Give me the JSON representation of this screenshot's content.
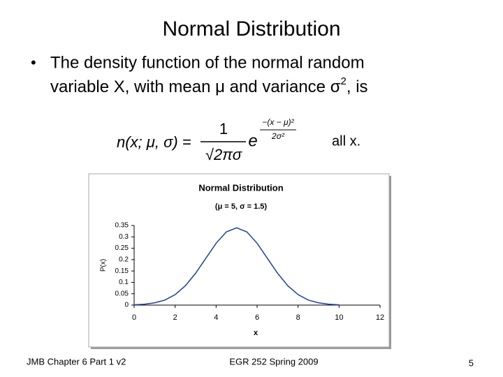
{
  "slide": {
    "title": "Normal Distribution",
    "bullet": {
      "line1": "The density function of the normal random",
      "line2_start": "variable X, with mean μ and variance σ",
      "superscript": "2",
      "line2_end": ", is"
    },
    "formula": {
      "lhs": "n(x; μ, σ) =",
      "numerator": "1",
      "denominator": "√2πσ",
      "base": "e",
      "exp_numerator": "−(x − μ)²",
      "exp_denominator": "2σ²",
      "condition": "all x."
    },
    "footer": {
      "left": "JMB Chapter 6 Part 1 v2",
      "center": "EGR 252 Spring 2009",
      "page": "5"
    }
  },
  "chart_data": {
    "type": "line",
    "title": "Normal Distribution",
    "subtitle": "(μ = 5, σ = 1.5)",
    "x_label": "x",
    "y_label": "P(x)",
    "x": [
      0,
      0.5,
      1,
      1.5,
      2,
      2.5,
      3,
      3.5,
      4,
      4.5,
      5,
      5.5,
      6,
      6.5,
      7,
      7.5,
      8,
      8.5,
      9,
      9.5,
      10
    ],
    "series": [
      {
        "name": "P(x)",
        "color": "#1f3f99",
        "values": [
          0.001,
          0.004,
          0.01,
          0.022,
          0.046,
          0.085,
          0.14,
          0.206,
          0.272,
          0.322,
          0.34,
          0.322,
          0.272,
          0.206,
          0.14,
          0.085,
          0.046,
          0.022,
          0.01,
          0.004,
          0.001
        ]
      }
    ],
    "xlim": [
      0,
      12
    ],
    "xticks": [
      0,
      2,
      4,
      6,
      8,
      10,
      12
    ],
    "ylim": [
      0,
      0.35
    ],
    "yticks": [
      0,
      0.05,
      0.1,
      0.15,
      0.2,
      0.25,
      0.3,
      0.35
    ],
    "grid": false
  }
}
